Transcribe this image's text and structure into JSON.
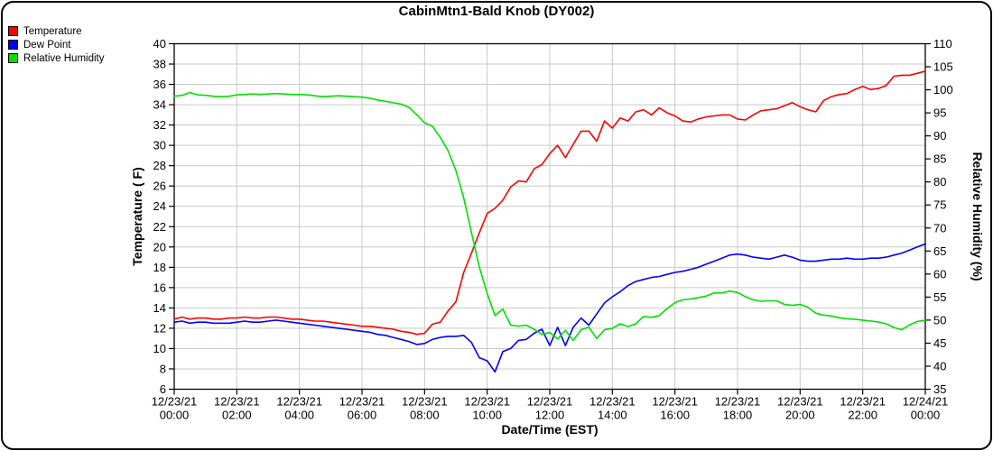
{
  "chart_data": {
    "type": "line",
    "title": "CabinMtn1-Bald Knob (DY002)",
    "xlabel": "Date/Time (EST)",
    "ylabel_left": "Temperature ( F)",
    "ylabel_right": "Relative Humidity (%)",
    "grid": true,
    "grid_color": "#c9c9c9",
    "axis_color": "#000000",
    "legend_position": "top-left",
    "x_range_hours": [
      0,
      24
    ],
    "x_tick_interval_hours": 2,
    "sample_interval_minutes": 15,
    "x_tick_labels": [
      {
        "date": "12/23/21",
        "time": "00:00"
      },
      {
        "date": "12/23/21",
        "time": "02:00"
      },
      {
        "date": "12/23/21",
        "time": "04:00"
      },
      {
        "date": "12/23/21",
        "time": "06:00"
      },
      {
        "date": "12/23/21",
        "time": "08:00"
      },
      {
        "date": "12/23/21",
        "time": "10:00"
      },
      {
        "date": "12/23/21",
        "time": "12:00"
      },
      {
        "date": "12/23/21",
        "time": "14:00"
      },
      {
        "date": "12/23/21",
        "time": "16:00"
      },
      {
        "date": "12/23/21",
        "time": "18:00"
      },
      {
        "date": "12/23/21",
        "time": "20:00"
      },
      {
        "date": "12/23/21",
        "time": "22:00"
      },
      {
        "date": "12/24/21",
        "time": "00:00"
      }
    ],
    "y_left": {
      "min": 6,
      "max": 40,
      "tick_step": 2
    },
    "y_right": {
      "min": 35,
      "max": 110,
      "tick_step": 5
    },
    "series": [
      {
        "name": "Temperature",
        "color": "#ff0000",
        "axis": "left",
        "values": [
          12.9,
          13.1,
          12.9,
          13.0,
          13.0,
          12.9,
          12.9,
          13.0,
          13.0,
          13.1,
          13.0,
          13.0,
          13.1,
          13.1,
          13.0,
          12.9,
          12.9,
          12.8,
          12.7,
          12.7,
          12.6,
          12.5,
          12.4,
          12.3,
          12.2,
          12.2,
          12.1,
          12.0,
          11.9,
          11.7,
          11.6,
          11.4,
          11.5,
          12.4,
          12.6,
          13.7,
          14.6,
          17.5,
          19.4,
          21.4,
          23.3,
          23.8,
          24.6,
          25.9,
          26.5,
          26.4,
          27.7,
          28.1,
          29.2,
          30.0,
          28.8,
          30.1,
          31.4,
          31.4,
          30.4,
          32.4,
          31.7,
          32.7,
          32.4,
          33.3,
          33.5,
          33.0,
          33.7,
          33.2,
          32.9,
          32.4,
          32.3,
          32.6,
          32.8,
          32.9,
          33.0,
          33.0,
          32.6,
          32.5,
          33.0,
          33.4,
          33.5,
          33.6,
          33.9,
          34.2,
          33.8,
          33.5,
          33.3,
          34.4,
          34.8,
          35.0,
          35.1,
          35.5,
          35.8,
          35.5,
          35.6,
          35.9,
          36.8,
          36.9,
          36.9,
          37.1,
          37.3
        ]
      },
      {
        "name": "Dew Point",
        "color": "#0000ff",
        "axis": "left",
        "values": [
          12.6,
          12.7,
          12.5,
          12.6,
          12.6,
          12.5,
          12.5,
          12.5,
          12.6,
          12.7,
          12.6,
          12.6,
          12.7,
          12.8,
          12.7,
          12.6,
          12.5,
          12.4,
          12.3,
          12.2,
          12.1,
          12.0,
          11.9,
          11.8,
          11.7,
          11.6,
          11.4,
          11.3,
          11.1,
          10.9,
          10.7,
          10.4,
          10.5,
          10.9,
          11.1,
          11.2,
          11.2,
          11.3,
          10.6,
          9.1,
          8.8,
          7.7,
          9.7,
          10.0,
          10.8,
          10.9,
          11.5,
          11.9,
          10.3,
          12.1,
          10.3,
          12.1,
          13.0,
          12.3,
          13.4,
          14.5,
          15.1,
          15.6,
          16.2,
          16.6,
          16.8,
          17.0,
          17.1,
          17.3,
          17.5,
          17.6,
          17.8,
          18.0,
          18.3,
          18.6,
          18.9,
          19.2,
          19.3,
          19.2,
          19.0,
          18.9,
          18.8,
          19.0,
          19.2,
          19.0,
          18.7,
          18.6,
          18.6,
          18.7,
          18.8,
          18.8,
          18.9,
          18.8,
          18.8,
          18.9,
          18.9,
          19.0,
          19.2,
          19.4,
          19.7,
          20.0,
          20.3
        ]
      },
      {
        "name": "Relative Humidity",
        "color": "#00e000",
        "axis": "right",
        "values": [
          98.6,
          98.8,
          99.4,
          98.9,
          98.8,
          98.6,
          98.5,
          98.6,
          98.9,
          99.0,
          99.1,
          99.0,
          99.1,
          99.2,
          99.1,
          99.0,
          99.0,
          98.9,
          98.7,
          98.5,
          98.6,
          98.7,
          98.6,
          98.5,
          98.4,
          98.2,
          97.8,
          97.5,
          97.2,
          96.9,
          96.2,
          94.6,
          92.8,
          92.1,
          89.7,
          86.8,
          82.5,
          76.5,
          69.0,
          61.5,
          55.8,
          51.0,
          52.4,
          48.9,
          48.7,
          48.9,
          48.0,
          46.9,
          47.3,
          45.9,
          47.8,
          45.6,
          47.9,
          48.5,
          46.0,
          47.9,
          48.2,
          49.2,
          48.6,
          49.2,
          50.8,
          50.6,
          51.0,
          52.5,
          53.8,
          54.4,
          54.6,
          54.9,
          55.2,
          55.9,
          55.9,
          56.3,
          56.0,
          55.1,
          54.4,
          54.1,
          54.2,
          54.2,
          53.4,
          53.2,
          53.4,
          52.8,
          51.5,
          51.1,
          50.9,
          50.5,
          50.3,
          50.2,
          50.0,
          49.8,
          49.6,
          49.2,
          48.4,
          47.9,
          49.0,
          49.7,
          50.0
        ]
      }
    ]
  }
}
